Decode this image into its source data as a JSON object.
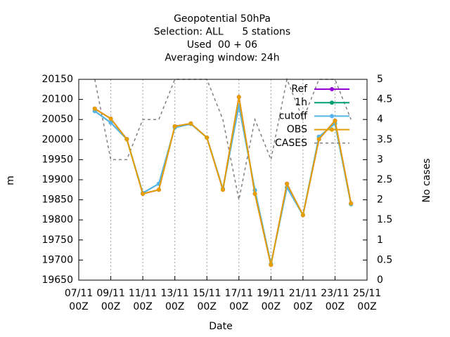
{
  "chart_data": {
    "type": "line",
    "title_lines": [
      "Geopotential 50hPa",
      "Selection: ALL      5 stations",
      "Used  00 + 06",
      "Averaging window: 24h"
    ],
    "xlabel": "Date",
    "ylabel": "m",
    "y2label": "No cases",
    "x": [
      "08/11 00Z",
      "09/11 00Z",
      "10/11 00Z",
      "11/11 00Z",
      "12/11 00Z",
      "13/11 00Z",
      "14/11 00Z",
      "15/11 00Z",
      "16/11 00Z",
      "17/11 00Z",
      "18/11 00Z",
      "19/11 00Z",
      "20/11 00Z",
      "21/11 00Z",
      "22/11 00Z",
      "23/11 00Z",
      "24/11 00Z"
    ],
    "xlim": [
      "07/11 00Z",
      "25/11 00Z"
    ],
    "xticks": [
      "07/11 00Z",
      "09/11 00Z",
      "11/11 00Z",
      "13/11 00Z",
      "15/11 00Z",
      "17/11 00Z",
      "19/11 00Z",
      "21/11 00Z",
      "23/11 00Z",
      "25/11 00Z"
    ],
    "ylim": [
      19650,
      20150
    ],
    "yticks": [
      19650,
      19700,
      19750,
      19800,
      19850,
      19900,
      19950,
      20000,
      20050,
      20100,
      20150
    ],
    "y2lim": [
      0,
      5
    ],
    "y2ticks": [
      0,
      0.5,
      1,
      1.5,
      2,
      2.5,
      3,
      3.5,
      4,
      4.5,
      5
    ],
    "xgrid": true,
    "legend": "top-right",
    "series": [
      {
        "name": "Ref",
        "color": "#9400d3",
        "values": [
          20077,
          20052,
          20001,
          19865,
          19875,
          20033,
          20040,
          20005,
          19875,
          20106,
          19865,
          19688,
          19890,
          19812,
          20001,
          20047,
          19841
        ]
      },
      {
        "name": "1h",
        "color": "#009e73",
        "values": [
          20071,
          20042,
          20001,
          19867,
          19890,
          20030,
          20039,
          20005,
          19877,
          20085,
          19874,
          19690,
          19881,
          19812,
          20007,
          20040,
          19839
        ]
      },
      {
        "name": "cutoff",
        "color": "#56b4e9",
        "values": [
          20071,
          20042,
          20001,
          19867,
          19890,
          20030,
          20039,
          20005,
          19877,
          20085,
          19874,
          19690,
          19881,
          19812,
          20007,
          20040,
          19839
        ]
      },
      {
        "name": "OBS",
        "color": "#e69f00",
        "values": [
          20077,
          20052,
          20001,
          19865,
          19875,
          20033,
          20040,
          20005,
          19875,
          20106,
          19865,
          19688,
          19890,
          19812,
          20001,
          20047,
          19841
        ]
      },
      {
        "name": "CASES",
        "color": "#808080",
        "axis": "y2",
        "dashed": true,
        "values": [
          5,
          3,
          3,
          4,
          4,
          5,
          5,
          5,
          4,
          2,
          4,
          3,
          5,
          4,
          5,
          5,
          4
        ]
      }
    ]
  }
}
